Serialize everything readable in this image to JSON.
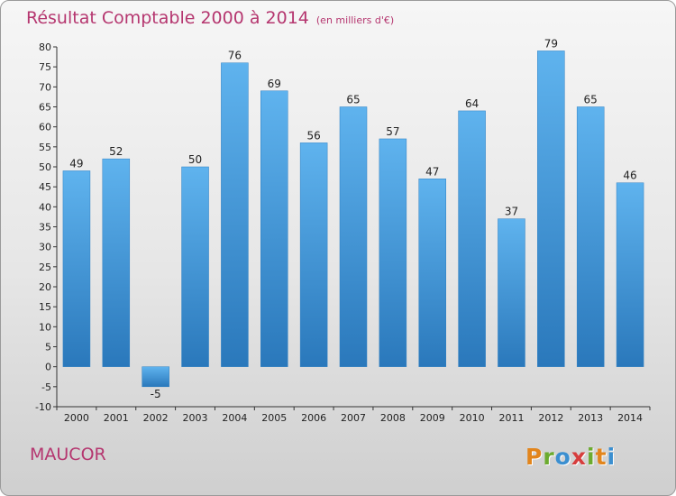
{
  "chart_data": {
    "type": "bar",
    "title": "Résultat Comptable 2000 à 2014",
    "unit": "(en milliers d'€)",
    "categories": [
      "2000",
      "2001",
      "2002",
      "2003",
      "2004",
      "2005",
      "2006",
      "2007",
      "2008",
      "2009",
      "2010",
      "2011",
      "2012",
      "2013",
      "2014"
    ],
    "values": [
      49,
      52,
      -5,
      50,
      76,
      69,
      56,
      65,
      57,
      47,
      64,
      37,
      79,
      65,
      46
    ],
    "ylim": [
      -10,
      80
    ],
    "yticks": [
      -10,
      -5,
      0,
      5,
      10,
      15,
      20,
      25,
      30,
      35,
      40,
      45,
      50,
      55,
      60,
      65,
      70,
      75,
      80
    ],
    "grid": false,
    "bar_color": "#3a93d6"
  },
  "footer": {
    "place": "MAUCOR",
    "logo_letters": [
      {
        "ch": "P",
        "color": "#e2851c"
      },
      {
        "ch": "r",
        "color": "#6cab2f"
      },
      {
        "ch": "o",
        "color": "#3b8fd0"
      },
      {
        "ch": "x",
        "color": "#d63d3d"
      },
      {
        "ch": "i",
        "color": "#6cab2f"
      },
      {
        "ch": "t",
        "color": "#e2851c"
      },
      {
        "ch": "i",
        "color": "#3b8fd0"
      }
    ]
  }
}
